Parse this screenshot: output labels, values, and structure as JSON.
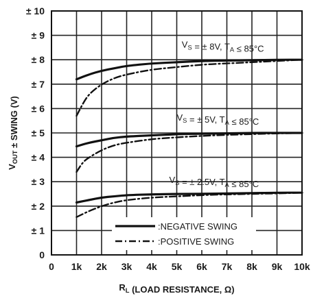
{
  "chart_data": {
    "type": "line",
    "xlabel": "R_L (LOAD RESISTANCE, Ω)",
    "ylabel": "V_OUT ± SWING (V)",
    "xlim": [
      0,
      10
    ],
    "ylim": [
      0,
      10
    ],
    "grid": true,
    "x_ticks": [
      0,
      1,
      2,
      3,
      4,
      5,
      6,
      7,
      8,
      9,
      10
    ],
    "x_tick_labels": [
      "0",
      "1k",
      "2k",
      "3k",
      "4k",
      "5k",
      "6k",
      "7k",
      "8k",
      "9k",
      "10k"
    ],
    "y_ticks": [
      0,
      1,
      2,
      3,
      4,
      5,
      6,
      7,
      8,
      9,
      10
    ],
    "y_tick_labels": [
      "0",
      "± 1",
      "± 2",
      "± 3",
      "± 4",
      "± 5",
      "± 6",
      "± 7",
      "± 8",
      "± 9",
      "± 10"
    ],
    "x_unit": "kΩ",
    "legend": {
      "placement": "bottom-center",
      "items": [
        {
          "label": ":NEGATIVE SWING",
          "style": "solid"
        },
        {
          "label": ":POSITIVE SWING",
          "style": "dash-dot"
        }
      ]
    },
    "annotations": [
      {
        "text": "V_S = ± 8V, T_A ≤ 85°C",
        "x": 5.2,
        "y": 8.5
      },
      {
        "text": "V_S = ± 5V, T_A ≤ 85°C",
        "x": 5.0,
        "y": 5.5
      },
      {
        "text": "V_S = ± 2.5V, T_A ≤ 85°C",
        "x": 4.7,
        "y": 2.95
      }
    ],
    "series": [
      {
        "group": "± 8V",
        "style": "solid",
        "x": [
          1,
          1.5,
          2,
          2.5,
          3,
          4,
          5,
          6,
          7,
          8,
          9,
          10
        ],
        "values": [
          7.2,
          7.4,
          7.55,
          7.65,
          7.75,
          7.85,
          7.9,
          7.95,
          7.97,
          7.98,
          8.0,
          8.0
        ]
      },
      {
        "group": "± 8V",
        "style": "dash-dot",
        "x": [
          1,
          1.25,
          1.5,
          2,
          2.5,
          3,
          4,
          5,
          6,
          7,
          8,
          9,
          10
        ],
        "values": [
          5.7,
          6.2,
          6.6,
          7.0,
          7.25,
          7.4,
          7.6,
          7.7,
          7.8,
          7.85,
          7.9,
          7.95,
          8.0
        ]
      },
      {
        "group": "± 5V",
        "style": "solid",
        "x": [
          1,
          1.5,
          2,
          2.5,
          3,
          4,
          5,
          6,
          7,
          8,
          9,
          10
        ],
        "values": [
          4.45,
          4.6,
          4.7,
          4.8,
          4.85,
          4.9,
          4.95,
          4.97,
          4.98,
          5.0,
          5.0,
          5.0
        ]
      },
      {
        "group": "± 5V",
        "style": "dash-dot",
        "x": [
          1,
          1.25,
          1.5,
          2,
          2.5,
          3,
          4,
          5,
          6,
          7,
          8,
          9,
          10
        ],
        "values": [
          3.4,
          3.8,
          4.0,
          4.3,
          4.5,
          4.6,
          4.75,
          4.82,
          4.88,
          4.92,
          4.95,
          4.98,
          5.0
        ]
      },
      {
        "group": "± 2.5V",
        "style": "solid",
        "x": [
          1,
          1.5,
          2,
          2.5,
          3,
          4,
          5,
          6,
          7,
          8,
          9,
          10
        ],
        "values": [
          2.15,
          2.25,
          2.35,
          2.4,
          2.45,
          2.48,
          2.5,
          2.5,
          2.52,
          2.53,
          2.55,
          2.55
        ]
      },
      {
        "group": "± 2.5V",
        "style": "dash-dot",
        "x": [
          1,
          1.5,
          2,
          2.5,
          3,
          4,
          5,
          6,
          7,
          8,
          9,
          10
        ],
        "values": [
          1.55,
          1.8,
          2.0,
          2.15,
          2.25,
          2.35,
          2.4,
          2.45,
          2.48,
          2.5,
          2.52,
          2.55
        ]
      }
    ]
  }
}
